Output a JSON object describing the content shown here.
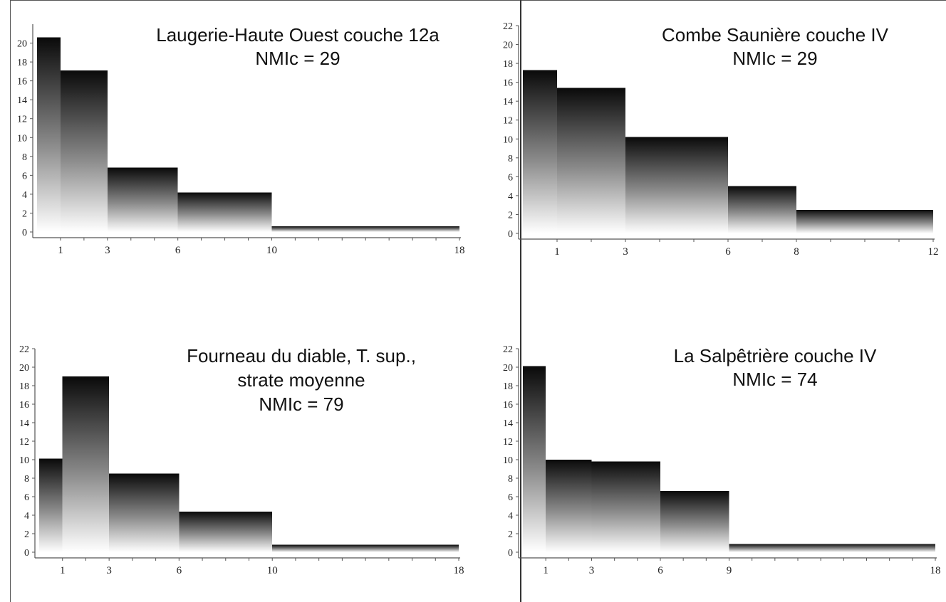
{
  "figure": {
    "panels": [
      {
        "title_lines": [
          "Laugerie-Haute Ouest couche 12a",
          "NMIc = 29"
        ]
      },
      {
        "title_lines": [
          "Combe Saunière couche IV",
          "NMIc = 29"
        ]
      },
      {
        "title_lines": [
          "Fourneau du diable, T. sup.,",
          "strate moyenne",
          "NMIc = 79"
        ]
      },
      {
        "title_lines": [
          "La Salpêtrière couche IV",
          "NMIc = 74"
        ]
      }
    ]
  },
  "chart_data": [
    {
      "type": "bar",
      "title": "Laugerie-Haute Ouest couche 12a NMIc = 29",
      "bin_edges": [
        0,
        1,
        3,
        6,
        10,
        18
      ],
      "values": [
        20.6,
        17.1,
        6.8,
        4.2,
        0.6
      ],
      "x_ticks": [
        1,
        3,
        6,
        10,
        18
      ],
      "y_ticks": [
        0,
        2,
        4,
        6,
        8,
        10,
        12,
        14,
        16,
        18,
        20
      ],
      "xlim": [
        0,
        18
      ],
      "ylim": [
        0,
        22
      ],
      "grid": false,
      "xlabel": "",
      "ylabel": "",
      "colors": {
        "bar_top": "#0a0a0a",
        "bar_bottom": "#ffffff",
        "axis": "#555555"
      }
    },
    {
      "type": "bar",
      "title": "Combe Saunière couche IV NMIc = 29",
      "bin_edges": [
        0,
        1,
        3,
        6,
        8,
        12
      ],
      "values": [
        17.3,
        15.4,
        10.2,
        5.0,
        2.5
      ],
      "x_ticks": [
        1,
        3,
        6,
        8,
        12
      ],
      "y_ticks": [
        0,
        2,
        4,
        6,
        8,
        10,
        12,
        14,
        16,
        18,
        20,
        22
      ],
      "xlim": [
        0,
        12
      ],
      "ylim": [
        0,
        22
      ],
      "grid": false,
      "xlabel": "",
      "ylabel": "",
      "colors": {
        "bar_top": "#0a0a0a",
        "bar_bottom": "#ffffff",
        "axis": "#555555"
      }
    },
    {
      "type": "bar",
      "title": "Fourneau du diable, T. sup., strate moyenne NMIc = 79",
      "bin_edges": [
        0,
        1,
        3,
        6,
        10,
        18
      ],
      "values": [
        10.1,
        19.0,
        8.5,
        4.4,
        0.8
      ],
      "x_ticks": [
        1,
        3,
        6,
        10,
        18
      ],
      "y_ticks": [
        0,
        2,
        4,
        6,
        8,
        10,
        12,
        14,
        16,
        18,
        20,
        22
      ],
      "xlim": [
        0,
        18
      ],
      "ylim": [
        0,
        22
      ],
      "grid": false,
      "xlabel": "",
      "ylabel": "",
      "colors": {
        "bar_top": "#0a0a0a",
        "bar_bottom": "#ffffff",
        "axis": "#555555"
      }
    },
    {
      "type": "bar",
      "title": "La Salpêtrière couche IV NMIc = 74",
      "bin_edges": [
        0,
        1,
        3,
        6,
        9,
        18
      ],
      "values": [
        20.1,
        10.0,
        9.8,
        6.6,
        0.9
      ],
      "x_ticks": [
        1,
        3,
        6,
        9,
        18
      ],
      "y_ticks": [
        0,
        2,
        4,
        6,
        8,
        10,
        12,
        14,
        16,
        18,
        20,
        22
      ],
      "xlim": [
        0,
        18
      ],
      "ylim": [
        0,
        22
      ],
      "grid": false,
      "xlabel": "",
      "ylabel": "",
      "colors": {
        "bar_top": "#0a0a0a",
        "bar_bottom": "#ffffff",
        "axis": "#555555"
      }
    }
  ]
}
